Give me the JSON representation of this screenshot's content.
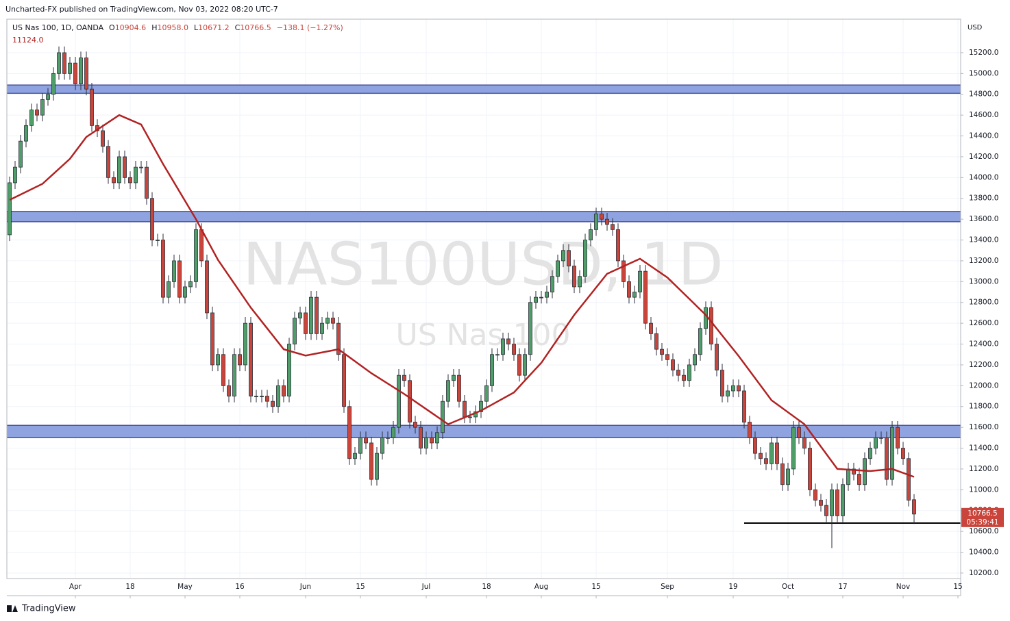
{
  "header": "Uncharted-FX published on TradingView.com, Nov 03, 2022 08:20 UTC-7",
  "footer": "TradingView",
  "chart_data": {
    "type": "candlestick",
    "watermark": "NAS100USD, 1D",
    "watermark_subtitle": "US Nas 100",
    "y_axis_label": "USD",
    "legend": {
      "title": "US Nas 100, 1D, OANDA",
      "fields": [
        {
          "key": "O",
          "value": "10904.6"
        },
        {
          "key": "H",
          "value": "10958.0"
        },
        {
          "key": "L",
          "value": "10671.2"
        },
        {
          "key": "C",
          "value": "10766.5"
        }
      ],
      "change": "−138.1 (−1.27%)"
    },
    "up_color": "#4f9d69",
    "down_color": "#c9453b",
    "xlim": [
      -0.5,
      173.5
    ],
    "xticks": [
      {
        "value": 12,
        "label": "Apr"
      },
      {
        "value": 22,
        "label": "18"
      },
      {
        "value": 32,
        "label": "May"
      },
      {
        "value": 42,
        "label": "16"
      },
      {
        "value": 54,
        "label": "Jun"
      },
      {
        "value": 64,
        "label": "15"
      },
      {
        "value": 76,
        "label": "Jul"
      },
      {
        "value": 87,
        "label": "18"
      },
      {
        "value": 97,
        "label": "Aug"
      },
      {
        "value": 107,
        "label": "15"
      },
      {
        "value": 120,
        "label": "Sep"
      },
      {
        "value": 132,
        "label": "19"
      },
      {
        "value": 142,
        "label": "Oct"
      },
      {
        "value": 152,
        "label": "17"
      },
      {
        "value": 163,
        "label": "Nov"
      },
      {
        "value": 173,
        "label": "15"
      }
    ],
    "ylim": [
      10147,
      15522
    ],
    "yticks": [
      {
        "value": 10200,
        "label": "10200.0"
      },
      {
        "value": 10400,
        "label": "10400.0"
      },
      {
        "value": 10600,
        "label": "10600.0"
      },
      {
        "value": 10800,
        "label": "10800.0"
      },
      {
        "value": 11000,
        "label": "11000.0"
      },
      {
        "value": 11200,
        "label": "11200.0"
      },
      {
        "value": 11400,
        "label": "11400.0"
      },
      {
        "value": 11600,
        "label": "11600.0"
      },
      {
        "value": 11800,
        "label": "11800.0"
      },
      {
        "value": 12000,
        "label": "12000.0"
      },
      {
        "value": 12200,
        "label": "12200.0"
      },
      {
        "value": 12400,
        "label": "12400.0"
      },
      {
        "value": 12600,
        "label": "12600.0"
      },
      {
        "value": 12800,
        "label": "12800.0"
      },
      {
        "value": 13000,
        "label": "13000.0"
      },
      {
        "value": 13200,
        "label": "13200.0"
      },
      {
        "value": 13400,
        "label": "13400.0"
      },
      {
        "value": 13600,
        "label": "13600.0"
      },
      {
        "value": 13800,
        "label": "13800.0"
      },
      {
        "value": 14000,
        "label": "14000.0"
      },
      {
        "value": 14200,
        "label": "14200.0"
      },
      {
        "value": 14400,
        "label": "14400.0"
      },
      {
        "value": 14600,
        "label": "14600.0"
      },
      {
        "value": 14800,
        "label": "14800.0"
      },
      {
        "value": 15000,
        "label": "15000.0"
      },
      {
        "value": 15200,
        "label": "15200.0"
      }
    ],
    "grid": true,
    "ohlc": [
      [
        13450,
        14010,
        13390,
        13950
      ],
      [
        13950,
        14160,
        13890,
        14100
      ],
      [
        14100,
        14410,
        14040,
        14350
      ],
      [
        14350,
        14560,
        14290,
        14500
      ],
      [
        14500,
        14710,
        14440,
        14650
      ],
      [
        14650,
        14710,
        14540,
        14600
      ],
      [
        14600,
        14810,
        14540,
        14750
      ],
      [
        14750,
        14860,
        14690,
        14800
      ],
      [
        14800,
        15060,
        14740,
        15000
      ],
      [
        15000,
        15260,
        14940,
        15200
      ],
      [
        15200,
        15260,
        14940,
        15000
      ],
      [
        15000,
        15160,
        14940,
        15100
      ],
      [
        15100,
        15160,
        14840,
        14900
      ],
      [
        14900,
        15210,
        14840,
        15150
      ],
      [
        15150,
        15210,
        14790,
        14850
      ],
      [
        14850,
        14910,
        14440,
        14500
      ],
      [
        14500,
        14560,
        14390,
        14450
      ],
      [
        14450,
        14510,
        14240,
        14300
      ],
      [
        14300,
        14360,
        13940,
        14000
      ],
      [
        14000,
        14060,
        13890,
        13950
      ],
      [
        13950,
        14260,
        13890,
        14200
      ],
      [
        14200,
        14260,
        13940,
        14000
      ],
      [
        14000,
        14060,
        13890,
        13950
      ],
      [
        13950,
        14160,
        13890,
        14100
      ],
      [
        14100,
        14160,
        14040,
        14100
      ],
      [
        14100,
        14160,
        13740,
        13800
      ],
      [
        13800,
        13860,
        13340,
        13400
      ],
      [
        13400,
        13460,
        13340,
        13400
      ],
      [
        13400,
        13460,
        12790,
        12850
      ],
      [
        12850,
        13060,
        12790,
        13000
      ],
      [
        13000,
        13260,
        12940,
        13200
      ],
      [
        13200,
        13260,
        12790,
        12850
      ],
      [
        12850,
        13010,
        12790,
        12950
      ],
      [
        12950,
        13060,
        12890,
        13000
      ],
      [
        13000,
        13560,
        12940,
        13500
      ],
      [
        13500,
        13560,
        13140,
        13200
      ],
      [
        13200,
        13260,
        12640,
        12700
      ],
      [
        12700,
        12760,
        12140,
        12200
      ],
      [
        12200,
        12360,
        12140,
        12300
      ],
      [
        12300,
        12360,
        11940,
        12000
      ],
      [
        12000,
        12060,
        11840,
        11900
      ],
      [
        11900,
        12360,
        11840,
        12300
      ],
      [
        12300,
        12360,
        12140,
        12200
      ],
      [
        12200,
        12660,
        12140,
        12600
      ],
      [
        12600,
        12660,
        11840,
        11900
      ],
      [
        11900,
        11960,
        11840,
        11900
      ],
      [
        11900,
        11960,
        11840,
        11900
      ],
      [
        11900,
        11960,
        11790,
        11850
      ],
      [
        11850,
        11910,
        11740,
        11800
      ],
      [
        11800,
        12060,
        11740,
        12000
      ],
      [
        12000,
        12060,
        11840,
        11900
      ],
      [
        11900,
        12460,
        11840,
        12400
      ],
      [
        12400,
        12710,
        12340,
        12650
      ],
      [
        12650,
        12760,
        12590,
        12700
      ],
      [
        12700,
        12760,
        12440,
        12500
      ],
      [
        12500,
        12910,
        12440,
        12850
      ],
      [
        12850,
        12910,
        12440,
        12500
      ],
      [
        12500,
        12660,
        12440,
        12600
      ],
      [
        12600,
        12710,
        12540,
        12650
      ],
      [
        12650,
        12710,
        12540,
        12600
      ],
      [
        12600,
        12660,
        12240,
        12300
      ],
      [
        12300,
        12360,
        11740,
        11800
      ],
      [
        11800,
        11860,
        11240,
        11300
      ],
      [
        11300,
        11410,
        11240,
        11350
      ],
      [
        11350,
        11560,
        11290,
        11500
      ],
      [
        11500,
        11560,
        11390,
        11450
      ],
      [
        11450,
        11510,
        11040,
        11100
      ],
      [
        11100,
        11410,
        11040,
        11350
      ],
      [
        11350,
        11560,
        11290,
        11500
      ],
      [
        11500,
        11560,
        11440,
        11500
      ],
      [
        11500,
        11660,
        11440,
        11600
      ],
      [
        11600,
        12160,
        11540,
        12100
      ],
      [
        12100,
        12160,
        11990,
        12050
      ],
      [
        12050,
        12110,
        11590,
        11650
      ],
      [
        11650,
        11710,
        11540,
        11600
      ],
      [
        11600,
        11660,
        11340,
        11400
      ],
      [
        11400,
        11560,
        11340,
        11500
      ],
      [
        11500,
        11560,
        11390,
        11450
      ],
      [
        11450,
        11610,
        11390,
        11550
      ],
      [
        11550,
        11910,
        11490,
        11850
      ],
      [
        11850,
        12110,
        11790,
        12050
      ],
      [
        12050,
        12160,
        11990,
        12100
      ],
      [
        12100,
        12160,
        11790,
        11850
      ],
      [
        11850,
        11910,
        11640,
        11700
      ],
      [
        11700,
        11760,
        11640,
        11700
      ],
      [
        11700,
        11810,
        11640,
        11750
      ],
      [
        11750,
        11910,
        11690,
        11850
      ],
      [
        11850,
        12060,
        11790,
        12000
      ],
      [
        12000,
        12360,
        11940,
        12300
      ],
      [
        12300,
        12360,
        12240,
        12300
      ],
      [
        12300,
        12510,
        12240,
        12450
      ],
      [
        12450,
        12510,
        12340,
        12400
      ],
      [
        12400,
        12460,
        12240,
        12300
      ],
      [
        12300,
        12360,
        12040,
        12100
      ],
      [
        12100,
        12360,
        12040,
        12300
      ],
      [
        12300,
        12860,
        12240,
        12800
      ],
      [
        12800,
        12910,
        12740,
        12850
      ],
      [
        12850,
        12910,
        12790,
        12850
      ],
      [
        12850,
        12960,
        12790,
        12900
      ],
      [
        12900,
        13110,
        12840,
        13050
      ],
      [
        13050,
        13260,
        12990,
        13200
      ],
      [
        13200,
        13360,
        13140,
        13300
      ],
      [
        13300,
        13360,
        13090,
        13150
      ],
      [
        13150,
        13210,
        12890,
        12950
      ],
      [
        12950,
        13110,
        12890,
        13050
      ],
      [
        13050,
        13460,
        12990,
        13400
      ],
      [
        13400,
        13560,
        13340,
        13500
      ],
      [
        13500,
        13710,
        13440,
        13650
      ],
      [
        13650,
        13710,
        13540,
        13600
      ],
      [
        13600,
        13660,
        13490,
        13550
      ],
      [
        13550,
        13610,
        13440,
        13500
      ],
      [
        13500,
        13560,
        13140,
        13200
      ],
      [
        13200,
        13260,
        12940,
        13000
      ],
      [
        13000,
        13060,
        12790,
        12850
      ],
      [
        12850,
        12960,
        12790,
        12900
      ],
      [
        12900,
        13160,
        12840,
        13100
      ],
      [
        13100,
        13160,
        12540,
        12600
      ],
      [
        12600,
        12660,
        12440,
        12500
      ],
      [
        12500,
        12560,
        12290,
        12350
      ],
      [
        12350,
        12410,
        12240,
        12300
      ],
      [
        12300,
        12360,
        12190,
        12250
      ],
      [
        12250,
        12310,
        12090,
        12150
      ],
      [
        12150,
        12210,
        12040,
        12100
      ],
      [
        12100,
        12160,
        11990,
        12050
      ],
      [
        12050,
        12260,
        11990,
        12200
      ],
      [
        12200,
        12360,
        12140,
        12300
      ],
      [
        12300,
        12610,
        12240,
        12550
      ],
      [
        12550,
        12810,
        12490,
        12750
      ],
      [
        12750,
        12810,
        12340,
        12400
      ],
      [
        12400,
        12460,
        12090,
        12150
      ],
      [
        12150,
        12210,
        11840,
        11900
      ],
      [
        11900,
        12010,
        11840,
        11950
      ],
      [
        11950,
        12060,
        11890,
        12000
      ],
      [
        12000,
        12060,
        11890,
        11950
      ],
      [
        11950,
        12010,
        11590,
        11650
      ],
      [
        11650,
        11710,
        11440,
        11500
      ],
      [
        11500,
        11560,
        11290,
        11350
      ],
      [
        11350,
        11410,
        11240,
        11300
      ],
      [
        11300,
        11360,
        11190,
        11250
      ],
      [
        11250,
        11510,
        11190,
        11450
      ],
      [
        11450,
        11510,
        11190,
        11250
      ],
      [
        11250,
        11310,
        10990,
        11050
      ],
      [
        11050,
        11260,
        10990,
        11200
      ],
      [
        11200,
        11660,
        11140,
        11600
      ],
      [
        11600,
        11660,
        11440,
        11500
      ],
      [
        11500,
        11560,
        11340,
        11400
      ],
      [
        11400,
        11460,
        10940,
        11000
      ],
      [
        11000,
        11060,
        10840,
        10900
      ],
      [
        10900,
        10960,
        10790,
        10850
      ],
      [
        10850,
        10910,
        10690,
        10750
      ],
      [
        10750,
        11060,
        10440,
        11000
      ],
      [
        11000,
        11060,
        10690,
        10750
      ],
      [
        10750,
        11110,
        10690,
        11050
      ],
      [
        11050,
        11260,
        10990,
        11200
      ],
      [
        11200,
        11260,
        11090,
        11150
      ],
      [
        11150,
        11210,
        10990,
        11050
      ],
      [
        11050,
        11360,
        10990,
        11300
      ],
      [
        11300,
        11460,
        11240,
        11400
      ],
      [
        11400,
        11560,
        11340,
        11500
      ],
      [
        11500,
        11560,
        11440,
        11500
      ],
      [
        11500,
        11560,
        11040,
        11100
      ],
      [
        11100,
        11660,
        11040,
        11600
      ],
      [
        11600,
        11660,
        11340,
        11400
      ],
      [
        11400,
        11460,
        11240,
        11300
      ],
      [
        11300,
        11360,
        10840,
        10900
      ],
      [
        10904.6,
        10958,
        10671.2,
        10766.5
      ]
    ],
    "moving_average": {
      "color": "#b22222",
      "label": "11124.0",
      "x": [
        0,
        6,
        11,
        14,
        20,
        24,
        28,
        34,
        38,
        44,
        50,
        54,
        60,
        66,
        72,
        80,
        86,
        92,
        97,
        103,
        109,
        115,
        120,
        127,
        133,
        139,
        145,
        151,
        157,
        161,
        165
      ],
      "values": [
        13785,
        13940,
        14180,
        14390,
        14600,
        14510,
        14130,
        13600,
        13210,
        12750,
        12350,
        12290,
        12350,
        12120,
        11920,
        11630,
        11760,
        11935,
        12220,
        12680,
        13075,
        13220,
        13040,
        12680,
        12285,
        11860,
        11630,
        11200,
        11180,
        11200,
        11124
      ]
    },
    "zones": [
      {
        "low": 14810,
        "high": 14890
      },
      {
        "low": 13575,
        "high": 13675
      },
      {
        "low": 11500,
        "high": 11620
      }
    ],
    "zone_color": "#8fa3e0",
    "support": {
      "value": 10680,
      "x_from": 134
    },
    "last_price": {
      "label": "10766.5",
      "countdown": "05:39:41"
    }
  }
}
